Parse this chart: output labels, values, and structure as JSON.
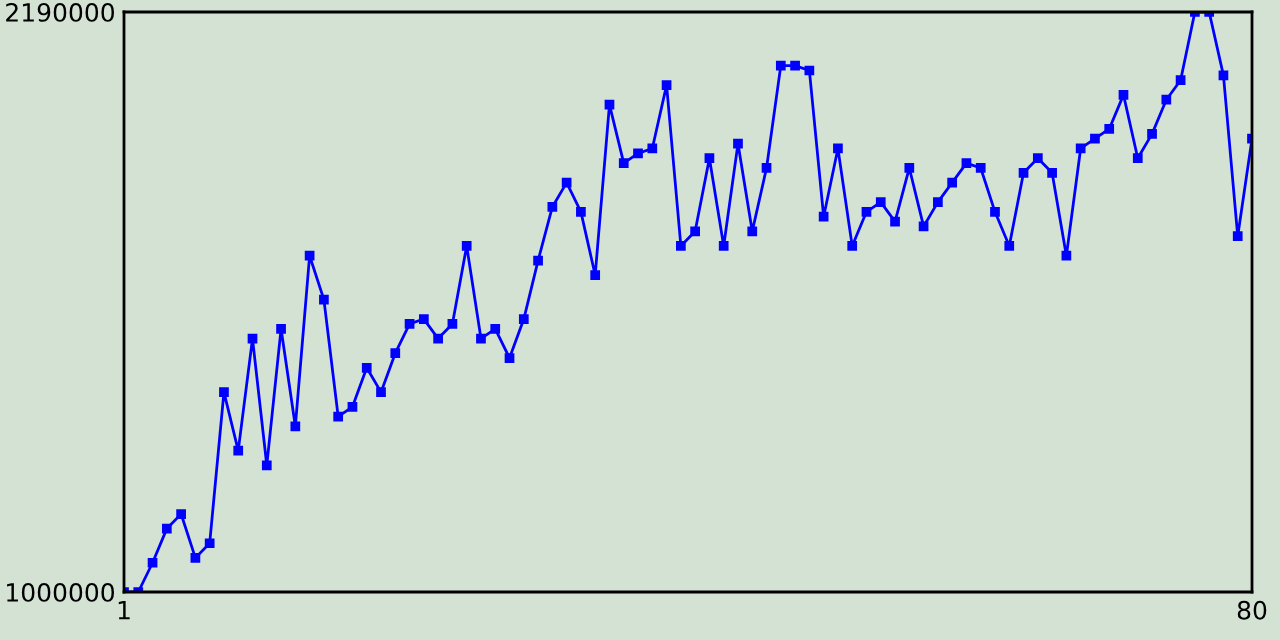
{
  "chart_data": {
    "type": "line",
    "x": [
      1,
      2,
      3,
      4,
      5,
      6,
      7,
      8,
      9,
      10,
      11,
      12,
      13,
      14,
      15,
      16,
      17,
      18,
      19,
      20,
      21,
      22,
      23,
      24,
      25,
      26,
      27,
      28,
      29,
      30,
      31,
      32,
      33,
      34,
      35,
      36,
      37,
      38,
      39,
      40,
      41,
      42,
      43,
      44,
      45,
      46,
      47,
      48,
      49,
      50,
      51,
      52,
      53,
      54,
      55,
      56,
      57,
      58,
      59,
      60,
      61,
      62,
      63,
      64,
      65,
      66,
      67,
      68,
      69,
      70,
      71,
      72,
      73,
      74,
      75,
      76,
      77,
      78,
      79,
      80
    ],
    "series": [
      {
        "color": "#0000ff",
        "values": [
          1000000,
          1000000,
          1060000,
          1130000,
          1160000,
          1070000,
          1100000,
          1410000,
          1290000,
          1520000,
          1260000,
          1540000,
          1340000,
          1690000,
          1600000,
          1360000,
          1380000,
          1460000,
          1410000,
          1490000,
          1550000,
          1560000,
          1520000,
          1550000,
          1710000,
          1520000,
          1540000,
          1480000,
          1560000,
          1680000,
          1790000,
          1840000,
          1780000,
          1650000,
          2000000,
          1880000,
          1900000,
          1910000,
          2040000,
          1710000,
          1740000,
          1890000,
          1710000,
          1920000,
          1740000,
          1870000,
          2080000,
          2080000,
          2070000,
          1770000,
          1910000,
          1710000,
          1780000,
          1800000,
          1760000,
          1870000,
          1750000,
          1800000,
          1840000,
          1880000,
          1870000,
          1780000,
          1710000,
          1860000,
          1890000,
          1860000,
          1690000,
          1910000,
          1930000,
          1950000,
          2020000,
          1890000,
          1940000,
          2010000,
          2050000,
          2190000,
          2190000,
          2060000,
          1730000,
          1930000
        ]
      }
    ],
    "xlim": [
      1,
      80
    ],
    "xticks": [
      1,
      80
    ],
    "ylim": [
      1000000,
      2190000
    ],
    "yticks": [
      1000000,
      2190000
    ],
    "marker": "square",
    "line_style": "solid"
  }
}
